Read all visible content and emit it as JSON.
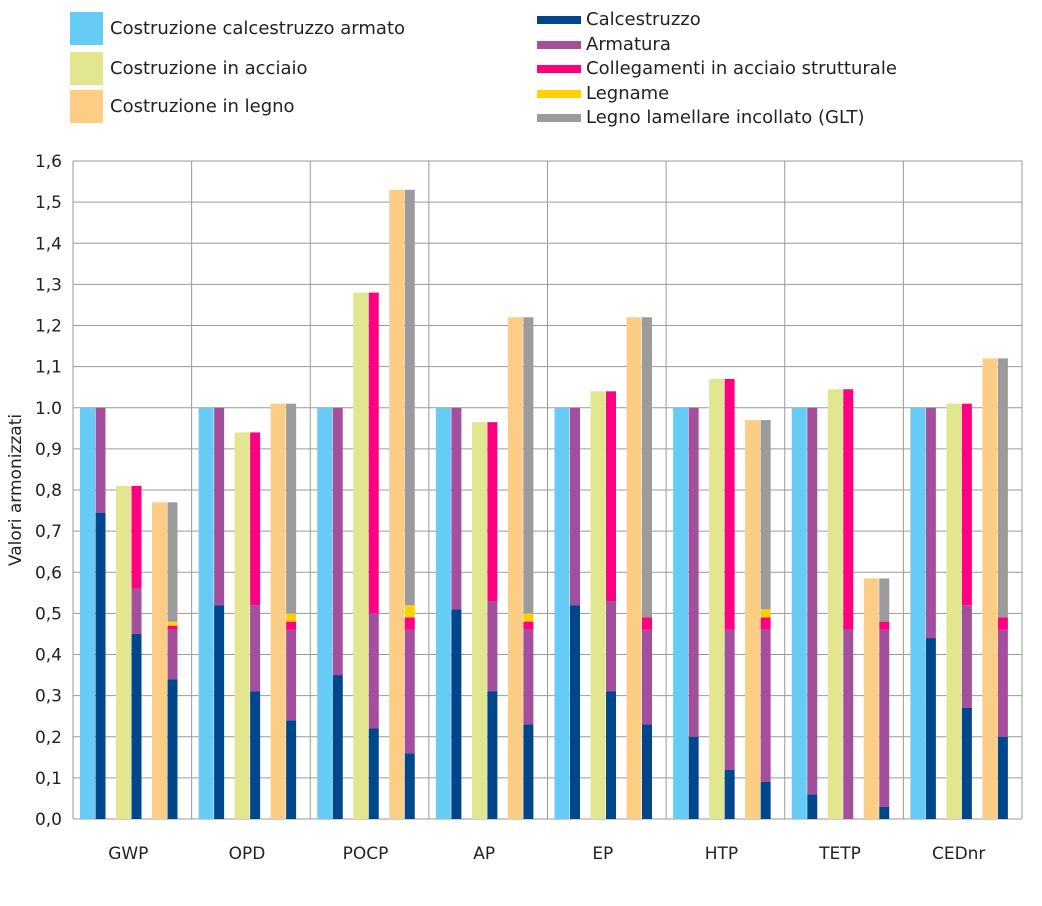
{
  "chart_data": {
    "type": "bar",
    "stacked": true,
    "title": "",
    "xlabel": "",
    "ylabel": "Valori armonizzati",
    "ylim": [
      0,
      1.6
    ],
    "yticks": [
      "0,0",
      "0,1",
      "0,2",
      "0,3",
      "0,4",
      "0,5",
      "0,6",
      "0,7",
      "0,8",
      "0,9",
      "1.0",
      "1,1",
      "1,2",
      "1,3",
      "1,4",
      "1,5",
      "1,6"
    ],
    "grid": true,
    "legend_position": "top",
    "categories": [
      "GWP",
      "OPD",
      "POCP",
      "AP",
      "EP",
      "HTP",
      "TETP",
      "CEDnr"
    ],
    "buildings": [
      {
        "name": "Costruzione calcestruzzo armato",
        "color": "#66ccf5"
      },
      {
        "name": "Costruzione in acciaio",
        "color": "#e2e78f"
      },
      {
        "name": "Costruzione in legno",
        "color": "#fccd85"
      }
    ],
    "components": [
      {
        "name": "Calcestruzzo",
        "color": "#00468c"
      },
      {
        "name": "Armatura",
        "color": "#a34f9e"
      },
      {
        "name": "Collegamenti in acciaio strutturale",
        "color": "#ff0080"
      },
      {
        "name": "Legname",
        "color": "#ffd100"
      },
      {
        "name": "Legno lamellare incollato (GLT)",
        "color": "#9b9b9b"
      }
    ],
    "values": {
      "GWP": [
        [
          0.745,
          0.255,
          0,
          0,
          0
        ],
        [
          0.45,
          0.11,
          0.25,
          0,
          0
        ],
        [
          0.34,
          0.12,
          0.01,
          0.01,
          0.29
        ]
      ],
      "OPD": [
        [
          0.52,
          0.48,
          0,
          0,
          0
        ],
        [
          0.31,
          0.21,
          0.42,
          0,
          0
        ],
        [
          0.24,
          0.22,
          0.02,
          0.02,
          0.51
        ]
      ],
      "POCP": [
        [
          0.35,
          0.65,
          0,
          0,
          0
        ],
        [
          0.22,
          0.28,
          0.78,
          0,
          0
        ],
        [
          0.16,
          0.3,
          0.03,
          0.03,
          1.01
        ]
      ],
      "AP": [
        [
          0.51,
          0.49,
          0,
          0,
          0
        ],
        [
          0.31,
          0.22,
          0.435,
          0,
          0
        ],
        [
          0.23,
          0.23,
          0.02,
          0.02,
          0.72
        ]
      ],
      "EP": [
        [
          0.52,
          0.48,
          0,
          0,
          0
        ],
        [
          0.31,
          0.22,
          0.51,
          0,
          0
        ],
        [
          0.23,
          0.23,
          0.03,
          0,
          0.73
        ]
      ],
      "HTP": [
        [
          0.2,
          0.8,
          0,
          0,
          0
        ],
        [
          0.12,
          0.34,
          0.61,
          0,
          0
        ],
        [
          0.09,
          0.37,
          0.03,
          0.02,
          0.46
        ]
      ],
      "TETP": [
        [
          0.06,
          0.94,
          0,
          0,
          0
        ],
        [
          0,
          0.46,
          0.585,
          0,
          0
        ],
        [
          0.03,
          0.43,
          0.02,
          0,
          0.105
        ]
      ],
      "CEDnr": [
        [
          0.44,
          0.56,
          0,
          0,
          0
        ],
        [
          0.27,
          0.25,
          0.49,
          0,
          0
        ],
        [
          0.2,
          0.26,
          0.03,
          0,
          0.63
        ]
      ]
    }
  }
}
